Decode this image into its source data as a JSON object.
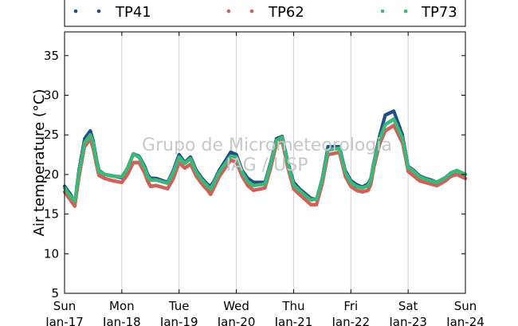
{
  "chart_data": {
    "type": "scatter",
    "ylabel": "Air temperature (°C)",
    "ylim": [
      5,
      38
    ],
    "yticks": [
      5,
      10,
      15,
      20,
      25,
      30,
      35
    ],
    "x_range_days": [
      0,
      7
    ],
    "xticks": [
      {
        "day": 0,
        "weekday": "Sun",
        "date": "Jan-17"
      },
      {
        "day": 1,
        "weekday": "Mon",
        "date": "Jan-18"
      },
      {
        "day": 2,
        "weekday": "Tue",
        "date": "Jan-19"
      },
      {
        "day": 3,
        "weekday": "Wed",
        "date": "Jan-20"
      },
      {
        "day": 4,
        "weekday": "Thu",
        "date": "Jan-21"
      },
      {
        "day": 5,
        "weekday": "Fri",
        "date": "Jan-22"
      },
      {
        "day": 6,
        "weekday": "Sat",
        "date": "Jan-23"
      },
      {
        "day": 7,
        "weekday": "Sun",
        "date": "Jan-24"
      }
    ],
    "grid": "vertical",
    "legend_position": "top",
    "watermark": [
      "Grupo de Micrometeorologia",
      "IAG / USP"
    ],
    "series": [
      {
        "name": "TP41",
        "color": "#1f4e8c",
        "x": [
          0.0,
          0.1,
          0.18,
          0.25,
          0.35,
          0.45,
          0.5,
          0.55,
          0.6,
          0.7,
          0.85,
          1.0,
          1.1,
          1.2,
          1.3,
          1.4,
          1.45,
          1.5,
          1.6,
          1.8,
          1.9,
          2.0,
          2.1,
          2.2,
          2.3,
          2.4,
          2.5,
          2.55,
          2.6,
          2.7,
          2.9,
          3.0,
          3.1,
          3.2,
          3.3,
          3.5,
          3.6,
          3.7,
          3.8,
          3.9,
          4.0,
          4.1,
          4.3,
          4.4,
          4.5,
          4.6,
          4.8,
          4.9,
          5.0,
          5.1,
          5.2,
          5.3,
          5.35,
          5.4,
          5.5,
          5.6,
          5.75,
          5.9,
          6.0,
          6.1,
          6.2,
          6.3,
          6.4,
          6.5,
          6.55,
          6.65,
          6.75,
          6.85,
          7.0
        ],
        "y": [
          18.5,
          17.5,
          16.5,
          20.5,
          24.5,
          25.5,
          24.2,
          22.2,
          20.5,
          20.0,
          19.8,
          19.6,
          20.8,
          22.6,
          22.3,
          21.0,
          20.0,
          19.5,
          19.5,
          19.0,
          20.5,
          22.5,
          21.5,
          22.2,
          20.5,
          19.5,
          18.7,
          18.5,
          19.0,
          20.5,
          22.8,
          22.5,
          20.5,
          19.5,
          19.0,
          19.0,
          21.5,
          24.5,
          24.8,
          21.5,
          19.0,
          18.2,
          17.0,
          16.8,
          19.5,
          23.5,
          23.5,
          20.5,
          19.2,
          18.7,
          18.4,
          18.8,
          19.5,
          21.5,
          24.8,
          27.5,
          28.0,
          25.0,
          21.0,
          20.5,
          19.8,
          19.5,
          19.3,
          19.0,
          19.2,
          19.6,
          20.2,
          20.5,
          20.0
        ]
      },
      {
        "name": "TP62",
        "color": "#d2605a",
        "x": [
          0.0,
          0.1,
          0.18,
          0.25,
          0.35,
          0.45,
          0.5,
          0.55,
          0.6,
          0.7,
          0.85,
          1.0,
          1.1,
          1.2,
          1.3,
          1.4,
          1.45,
          1.5,
          1.6,
          1.8,
          1.9,
          2.0,
          2.1,
          2.2,
          2.3,
          2.4,
          2.5,
          2.55,
          2.6,
          2.7,
          2.9,
          3.0,
          3.1,
          3.2,
          3.3,
          3.5,
          3.6,
          3.7,
          3.8,
          3.9,
          4.0,
          4.1,
          4.3,
          4.4,
          4.5,
          4.6,
          4.8,
          4.9,
          5.0,
          5.1,
          5.2,
          5.3,
          5.35,
          5.4,
          5.5,
          5.6,
          5.75,
          5.9,
          6.0,
          6.1,
          6.2,
          6.3,
          6.4,
          6.5,
          6.55,
          6.65,
          6.75,
          6.85,
          7.0
        ],
        "y": [
          17.8,
          16.8,
          16.0,
          19.5,
          23.5,
          24.5,
          23.3,
          21.5,
          19.9,
          19.5,
          19.2,
          19.0,
          20.0,
          21.5,
          21.5,
          20.2,
          19.2,
          18.5,
          18.6,
          18.2,
          19.5,
          21.5,
          20.8,
          21.3,
          19.8,
          18.8,
          18.0,
          17.5,
          18.2,
          19.7,
          21.8,
          21.6,
          19.8,
          18.6,
          18.0,
          18.3,
          20.8,
          23.8,
          24.2,
          20.8,
          18.2,
          17.5,
          16.2,
          16.2,
          18.8,
          22.5,
          22.8,
          19.8,
          18.5,
          18.0,
          17.8,
          18.0,
          18.8,
          20.8,
          23.8,
          25.5,
          26.2,
          24.0,
          20.4,
          19.8,
          19.2,
          19.0,
          18.8,
          18.6,
          18.8,
          19.2,
          19.8,
          20.0,
          19.5
        ]
      },
      {
        "name": "TP73",
        "color": "#3cb878",
        "x": [
          0.0,
          0.1,
          0.18,
          0.25,
          0.35,
          0.45,
          0.5,
          0.55,
          0.6,
          0.7,
          0.85,
          1.0,
          1.1,
          1.2,
          1.3,
          1.4,
          1.45,
          1.5,
          1.6,
          1.8,
          1.9,
          2.0,
          2.1,
          2.2,
          2.3,
          2.4,
          2.5,
          2.55,
          2.6,
          2.7,
          2.9,
          3.0,
          3.1,
          3.2,
          3.3,
          3.5,
          3.6,
          3.7,
          3.8,
          3.9,
          4.0,
          4.1,
          4.3,
          4.4,
          4.5,
          4.6,
          4.8,
          4.9,
          5.0,
          5.1,
          5.2,
          5.3,
          5.35,
          5.4,
          5.5,
          5.6,
          5.75,
          5.9,
          6.0,
          6.1,
          6.2,
          6.3,
          6.4,
          6.5,
          6.55,
          6.65,
          6.75,
          6.85,
          7.0
        ],
        "y": [
          18.3,
          17.3,
          16.6,
          20.2,
          24.0,
          25.0,
          24.0,
          22.0,
          20.4,
          20.0,
          19.8,
          19.7,
          20.8,
          22.6,
          22.2,
          20.8,
          19.8,
          19.3,
          19.3,
          18.9,
          20.3,
          22.2,
          21.4,
          22.0,
          20.3,
          19.3,
          18.5,
          18.2,
          18.8,
          20.3,
          22.3,
          22.2,
          20.3,
          19.1,
          18.6,
          18.8,
          21.3,
          24.3,
          24.7,
          21.3,
          18.7,
          18.0,
          16.8,
          16.9,
          19.4,
          23.1,
          23.3,
          20.3,
          19.0,
          18.5,
          18.3,
          18.6,
          19.4,
          21.4,
          24.4,
          26.3,
          27.0,
          24.6,
          20.9,
          20.4,
          19.7,
          19.4,
          19.2,
          19.0,
          19.2,
          19.6,
          20.2,
          20.5,
          20.0
        ]
      }
    ]
  }
}
